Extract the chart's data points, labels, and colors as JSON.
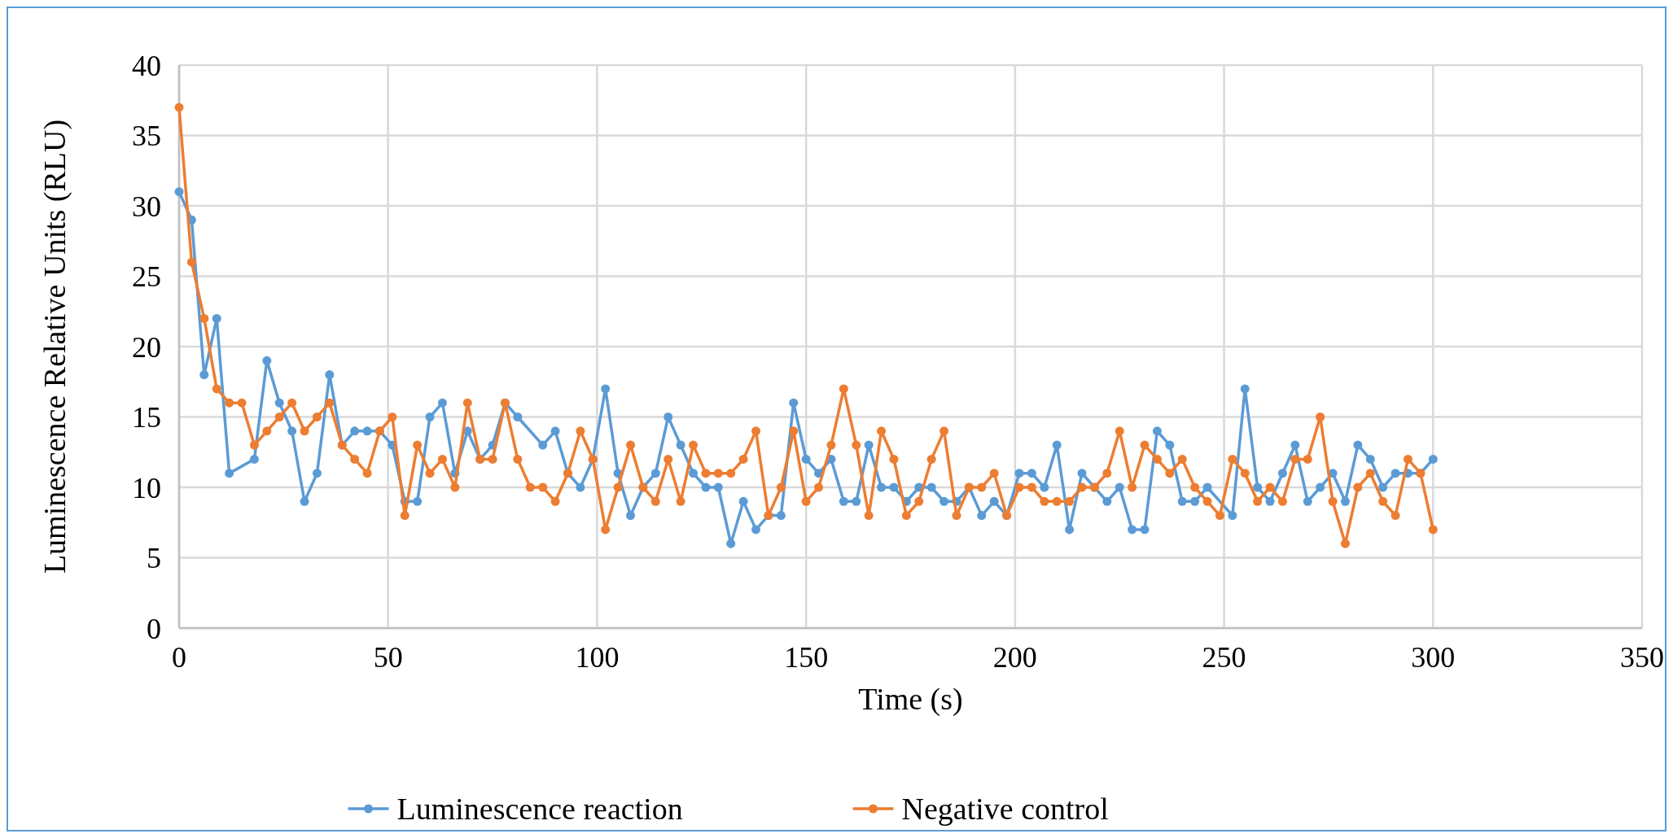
{
  "chart_data": {
    "type": "line",
    "xlabel": "Time (s)",
    "ylabel": "Luminescence Relative Units (RLU)",
    "x": [
      0,
      3,
      6,
      9,
      12,
      15,
      18,
      21,
      24,
      27,
      30,
      33,
      36,
      39,
      42,
      45,
      48,
      51,
      54,
      57,
      60,
      63,
      66,
      69,
      72,
      75,
      78,
      81,
      84,
      87,
      90,
      93,
      96,
      99,
      102,
      105,
      108,
      111,
      114,
      117,
      120,
      123,
      126,
      129,
      132,
      135,
      138,
      141,
      144,
      147,
      150,
      153,
      156,
      159,
      162,
      165,
      168,
      171,
      174,
      177,
      180,
      183,
      186,
      189,
      192,
      195,
      198,
      201,
      204,
      207,
      210,
      213,
      216,
      219,
      222,
      225,
      228,
      231,
      234,
      237,
      240,
      243,
      246,
      249,
      252,
      255,
      258,
      261,
      264,
      267,
      270,
      273,
      276,
      279,
      282,
      285,
      288,
      291,
      294,
      297,
      300
    ],
    "series": [
      {
        "name": "Luminescence reaction",
        "color": "#5b9bd5",
        "values": [
          31,
          29,
          18,
          22,
          11,
          null,
          12,
          19,
          16,
          14,
          9,
          11,
          18,
          13,
          14,
          14,
          14,
          13,
          9,
          9,
          15,
          16,
          11,
          14,
          12,
          13,
          16,
          15,
          null,
          13,
          14,
          11,
          10,
          12,
          17,
          11,
          8,
          10,
          11,
          15,
          13,
          11,
          10,
          10,
          6,
          9,
          7,
          8,
          8,
          16,
          12,
          11,
          12,
          9,
          9,
          13,
          10,
          10,
          9,
          10,
          10,
          9,
          9,
          10,
          8,
          9,
          8,
          11,
          11,
          10,
          13,
          7,
          11,
          10,
          9,
          10,
          7,
          7,
          14,
          13,
          9,
          9,
          10,
          null,
          8,
          17,
          10,
          9,
          11,
          13,
          9,
          10,
          11,
          9,
          13,
          12,
          10,
          11,
          11,
          11,
          12
        ]
      },
      {
        "name": "Negative control",
        "color": "#ed7d31",
        "values": [
          37,
          26,
          22,
          17,
          16,
          16,
          13,
          14,
          15,
          16,
          14,
          15,
          16,
          13,
          12,
          11,
          14,
          15,
          8,
          13,
          11,
          12,
          10,
          16,
          12,
          12,
          16,
          12,
          10,
          10,
          9,
          11,
          14,
          12,
          7,
          10,
          13,
          10,
          9,
          12,
          9,
          13,
          11,
          11,
          11,
          12,
          14,
          8,
          10,
          14,
          9,
          10,
          13,
          17,
          13,
          8,
          14,
          12,
          8,
          9,
          12,
          14,
          8,
          10,
          10,
          11,
          8,
          10,
          10,
          9,
          9,
          9,
          10,
          10,
          11,
          14,
          10,
          13,
          12,
          11,
          12,
          10,
          9,
          8,
          12,
          11,
          9,
          10,
          9,
          12,
          12,
          15,
          9,
          6,
          10,
          11,
          9,
          8,
          12,
          11,
          7
        ]
      }
    ],
    "xlim": [
      0,
      350
    ],
    "xticks": [
      0,
      50,
      100,
      150,
      200,
      250,
      300,
      350
    ],
    "ylim": [
      0,
      40
    ],
    "yticks": [
      0,
      5,
      10,
      15,
      20,
      25,
      30,
      35,
      40
    ],
    "grid": true,
    "legend": "bottom",
    "marker": "circle",
    "line_style": "solid"
  }
}
